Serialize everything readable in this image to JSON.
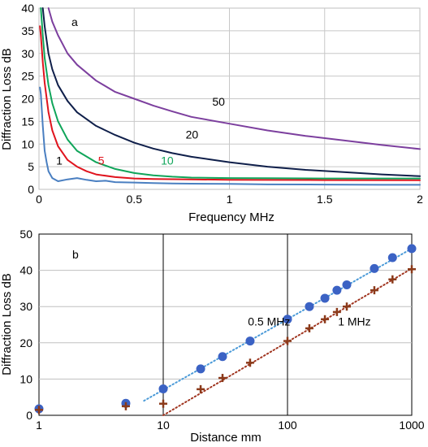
{
  "chart_data": [
    {
      "type": "line",
      "panel_label": "a",
      "xlabel": "Frequency  MHz",
      "ylabel": "Diffraction Loss  dB",
      "xlim": [
        0,
        2
      ],
      "ylim": [
        0,
        40
      ],
      "x_ticks": [
        "0",
        "0.5",
        "1",
        "1.5",
        "2"
      ],
      "y_ticks": [
        "0",
        "5",
        "10",
        "15",
        "20",
        "25",
        "30",
        "35",
        "40"
      ],
      "grid": true,
      "series": [
        {
          "name": "1",
          "color": "#4a7fc1",
          "points": [
            [
              0.005,
              22.5
            ],
            [
              0.01,
              21
            ],
            [
              0.02,
              14
            ],
            [
              0.03,
              8.5
            ],
            [
              0.04,
              6
            ],
            [
              0.05,
              4
            ],
            [
              0.07,
              2.5
            ],
            [
              0.1,
              1.8
            ],
            [
              0.15,
              2.2
            ],
            [
              0.2,
              2.5
            ],
            [
              0.25,
              2.1
            ],
            [
              0.3,
              1.8
            ],
            [
              0.35,
              1.9
            ],
            [
              0.4,
              1.6
            ],
            [
              0.5,
              1.5
            ],
            [
              0.6,
              1.4
            ],
            [
              0.7,
              1.3
            ],
            [
              0.8,
              1.25
            ],
            [
              1.0,
              1.2
            ],
            [
              1.2,
              1.1
            ],
            [
              1.5,
              1.05
            ],
            [
              1.8,
              1.0
            ],
            [
              2.0,
              1.0
            ]
          ]
        },
        {
          "name": "5",
          "color": "#e0141e",
          "points": [
            [
              0.005,
              36
            ],
            [
              0.01,
              34
            ],
            [
              0.02,
              28
            ],
            [
              0.03,
              23.5
            ],
            [
              0.05,
              17
            ],
            [
              0.07,
              13
            ],
            [
              0.1,
              9.5
            ],
            [
              0.15,
              6.5
            ],
            [
              0.2,
              5
            ],
            [
              0.25,
              4
            ],
            [
              0.3,
              3.3
            ],
            [
              0.4,
              2.7
            ],
            [
              0.5,
              2.4
            ],
            [
              0.6,
              2.3
            ],
            [
              0.8,
              2.2
            ],
            [
              1.0,
              2.1
            ],
            [
              1.5,
              2.05
            ],
            [
              2.0,
              2.0
            ]
          ]
        },
        {
          "name": "10",
          "color": "#10a55a",
          "points": [
            [
              0.01,
              40
            ],
            [
              0.02,
              34
            ],
            [
              0.03,
              29
            ],
            [
              0.05,
              23
            ],
            [
              0.07,
              19
            ],
            [
              0.1,
              15
            ],
            [
              0.15,
              11
            ],
            [
              0.2,
              8.5
            ],
            [
              0.3,
              6
            ],
            [
              0.4,
              4.5
            ],
            [
              0.5,
              3.6
            ],
            [
              0.6,
              3.1
            ],
            [
              0.7,
              2.8
            ],
            [
              0.8,
              2.6
            ],
            [
              1.0,
              2.5
            ],
            [
              1.2,
              2.45
            ],
            [
              1.5,
              2.4
            ],
            [
              2.0,
              2.4
            ]
          ]
        },
        {
          "name": "20",
          "color": "#0f1f4a",
          "points": [
            [
              0.02,
              40
            ],
            [
              0.03,
              36
            ],
            [
              0.05,
              30
            ],
            [
              0.07,
              26.5
            ],
            [
              0.1,
              23
            ],
            [
              0.15,
              19.5
            ],
            [
              0.2,
              17
            ],
            [
              0.3,
              14
            ],
            [
              0.4,
              12
            ],
            [
              0.5,
              10.3
            ],
            [
              0.6,
              9
            ],
            [
              0.7,
              8
            ],
            [
              0.8,
              7.2
            ],
            [
              0.9,
              6.6
            ],
            [
              1.0,
              6
            ],
            [
              1.2,
              5
            ],
            [
              1.4,
              4.3
            ],
            [
              1.6,
              3.8
            ],
            [
              1.8,
              3.3
            ],
            [
              2.0,
              2.9
            ]
          ]
        },
        {
          "name": "50",
          "color": "#7c3f9e",
          "points": [
            [
              0.05,
              40
            ],
            [
              0.07,
              37
            ],
            [
              0.1,
              34
            ],
            [
              0.15,
              30
            ],
            [
              0.2,
              27.5
            ],
            [
              0.3,
              24
            ],
            [
              0.4,
              21.5
            ],
            [
              0.5,
              20
            ],
            [
              0.6,
              18.5
            ],
            [
              0.7,
              17.2
            ],
            [
              0.8,
              16
            ],
            [
              1.0,
              14.5
            ],
            [
              1.2,
              13
            ],
            [
              1.4,
              11.8
            ],
            [
              1.6,
              10.8
            ],
            [
              1.8,
              9.8
            ],
            [
              2.0,
              8.9
            ]
          ]
        }
      ],
      "curve_labels": [
        {
          "text": "1",
          "x": 0.09,
          "y": 5.5
        },
        {
          "text": "5",
          "x": 0.31,
          "y": 5.5
        },
        {
          "text": "10",
          "x": 0.64,
          "y": 5.5
        },
        {
          "text": "20",
          "x": 0.77,
          "y": 11.2
        },
        {
          "text": "50",
          "x": 0.91,
          "y": 18.5
        }
      ]
    },
    {
      "type": "scatter",
      "panel_label": "b",
      "xlabel": "Distance  mm",
      "ylabel": "Diffraction Loss  dB",
      "x_scale": "log",
      "xlim": [
        1,
        1000
      ],
      "ylim": [
        0,
        50
      ],
      "x_ticks": [
        "1",
        "10",
        "100",
        "1000"
      ],
      "y_ticks": [
        "0",
        "10",
        "20",
        "30",
        "40",
        "50"
      ],
      "grid": true,
      "series": [
        {
          "name": "0.5 MHz",
          "marker": "circle",
          "color": "#3b62c4",
          "trend_color": "#4a9ad8",
          "x": [
            1,
            5,
            10,
            20,
            30,
            50,
            100,
            150,
            200,
            250,
            300,
            500,
            700,
            1000
          ],
          "y": [
            1.8,
            3.3,
            7.3,
            12.8,
            16.2,
            20.5,
            26.5,
            30,
            32.3,
            34.5,
            36,
            40.5,
            43.5,
            46
          ]
        },
        {
          "name": "1 MHz",
          "marker": "plus",
          "color": "#8b3a1a",
          "trend_color": "#a03520",
          "x": [
            1,
            5,
            10,
            20,
            30,
            50,
            100,
            150,
            200,
            250,
            300,
            500,
            700,
            1000
          ],
          "y": [
            1.5,
            2.5,
            3.2,
            7.2,
            10.3,
            14.5,
            20.5,
            24,
            26.5,
            28.5,
            30,
            34.5,
            37.5,
            40.3
          ]
        }
      ],
      "trend_0_5MHz": [
        [
          7,
          4
        ],
        [
          1000,
          46
        ]
      ],
      "trend_1MHz": [
        [
          10,
          0
        ],
        [
          1000,
          40.5
        ]
      ],
      "curve_labels": [
        {
          "text": "0.5 MHz",
          "x": 48,
          "y": 24.8
        },
        {
          "text": "1 MHz",
          "x": 255,
          "y": 24.8
        }
      ]
    }
  ]
}
